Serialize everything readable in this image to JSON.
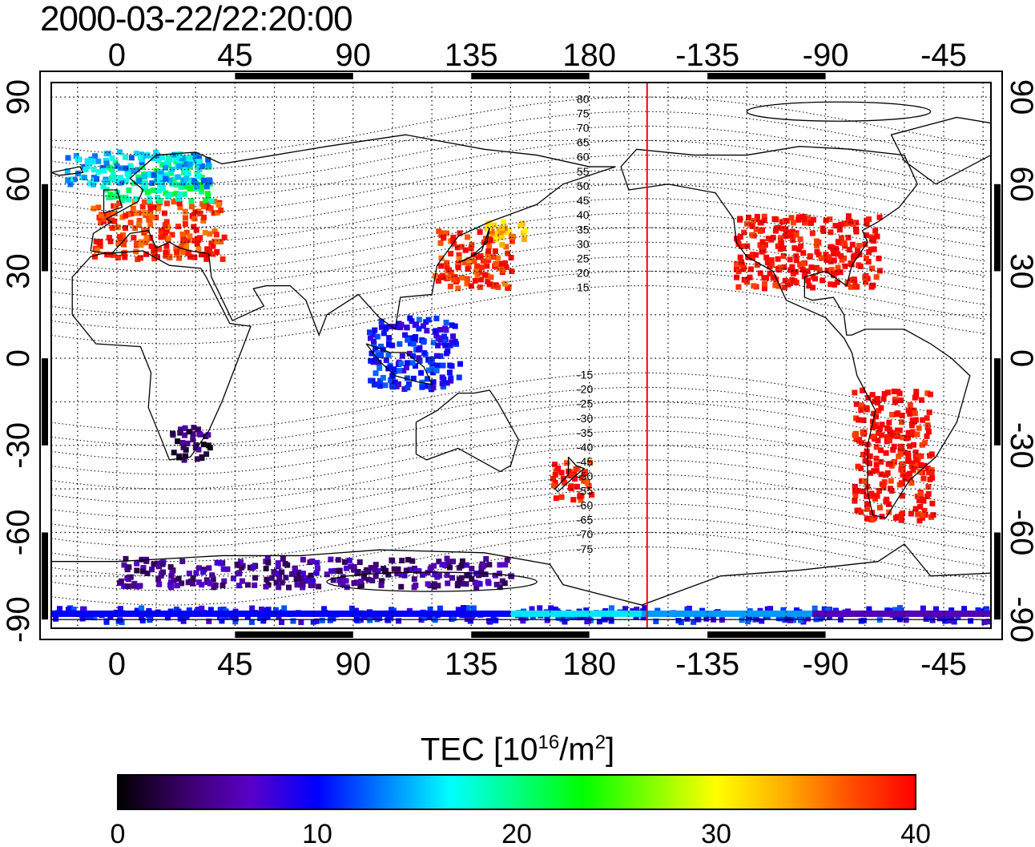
{
  "title": "2000-03-22/22:20:00",
  "map": {
    "lon_ticks_top": [
      "0",
      "45",
      "90",
      "135",
      "180",
      "-135",
      "-90",
      "-45"
    ],
    "lon_ticks_bottom": [
      "0",
      "45",
      "90",
      "135",
      "180",
      "-135",
      "-90",
      "-45"
    ],
    "lat_ticks": [
      "90",
      "60",
      "30",
      "0",
      "-30",
      "-60",
      "-90"
    ],
    "lon_values": [
      0,
      45,
      90,
      135,
      180,
      225,
      270,
      315
    ],
    "lat_values": [
      90,
      60,
      30,
      0,
      -30,
      -60,
      -90
    ],
    "lon_range": [
      -25,
      333
    ],
    "lat_range": [
      -93,
      95
    ],
    "magnetic_lat_labels": [
      "80",
      "75",
      "70",
      "65",
      "60",
      "55",
      "50",
      "45",
      "40",
      "35",
      "30",
      "25",
      "20",
      "15",
      "-15",
      "-20",
      "-25",
      "-30",
      "-35",
      "-40",
      "-45",
      "-50",
      "-55",
      "-60",
      "-65",
      "-70",
      "-75"
    ],
    "magnetic_lat_values": [
      80,
      75,
      70,
      65,
      60,
      55,
      50,
      45,
      40,
      35,
      30,
      25,
      20,
      15,
      -15,
      -20,
      -25,
      -30,
      -35,
      -40,
      -45,
      -50,
      -55,
      -60,
      -65,
      -70,
      -75
    ],
    "terminator_lon": 202,
    "terminator_color": "#ff0000",
    "coastline_color": "#000000",
    "grid": "dotted"
  },
  "colorbar": {
    "label_main": "TEC  [10",
    "label_exp1": "16",
    "label_mid": "/m",
    "label_exp2": "2",
    "label_end": "]",
    "tick_labels": [
      "0",
      "10",
      "20",
      "30",
      "40"
    ],
    "tick_values": [
      0,
      10,
      20,
      30,
      40
    ],
    "range": [
      0,
      40
    ],
    "colors": [
      "#000000",
      "#3a0068",
      "#5a00c8",
      "#0000ff",
      "#0080ff",
      "#00ffff",
      "#00ff80",
      "#00ff00",
      "#80ff00",
      "#ffff00",
      "#ffb000",
      "#ff5000",
      "#ff0000"
    ]
  },
  "chart_data": {
    "type": "heatmap",
    "xlabel": "",
    "ylabel": "",
    "regions": [
      {
        "lon": [
          -10,
          40
        ],
        "lat": [
          35,
          55
        ],
        "tec": 38
      },
      {
        "lon": [
          -5,
          35
        ],
        "lat": [
          55,
          70
        ],
        "tec": 20
      },
      {
        "lon": [
          -20,
          35
        ],
        "lat": [
          60,
          72
        ],
        "tec": 15
      },
      {
        "lon": [
          120,
          150
        ],
        "lat": [
          25,
          45
        ],
        "tec": 38
      },
      {
        "lon": [
          140,
          155
        ],
        "lat": [
          40,
          48
        ],
        "tec": 33
      },
      {
        "lon": [
          235,
          290
        ],
        "lat": [
          25,
          50
        ],
        "tec": 40
      },
      {
        "lon": [
          280,
          310
        ],
        "lat": [
          -55,
          -10
        ],
        "tec": 40
      },
      {
        "lon": [
          165,
          180
        ],
        "lat": [
          -48,
          -35
        ],
        "tec": 39
      },
      {
        "lon": [
          95,
          130
        ],
        "lat": [
          -10,
          15
        ],
        "tec": 10
      },
      {
        "lon": [
          -25,
          333
        ],
        "lat": [
          -90,
          -85
        ],
        "tec": 10
      },
      {
        "lon": [
          0,
          150
        ],
        "lat": [
          -78,
          -68
        ],
        "tec": 5
      },
      {
        "lon": [
          20,
          35
        ],
        "lat": [
          -35,
          -22
        ],
        "tec": 3
      }
    ]
  }
}
